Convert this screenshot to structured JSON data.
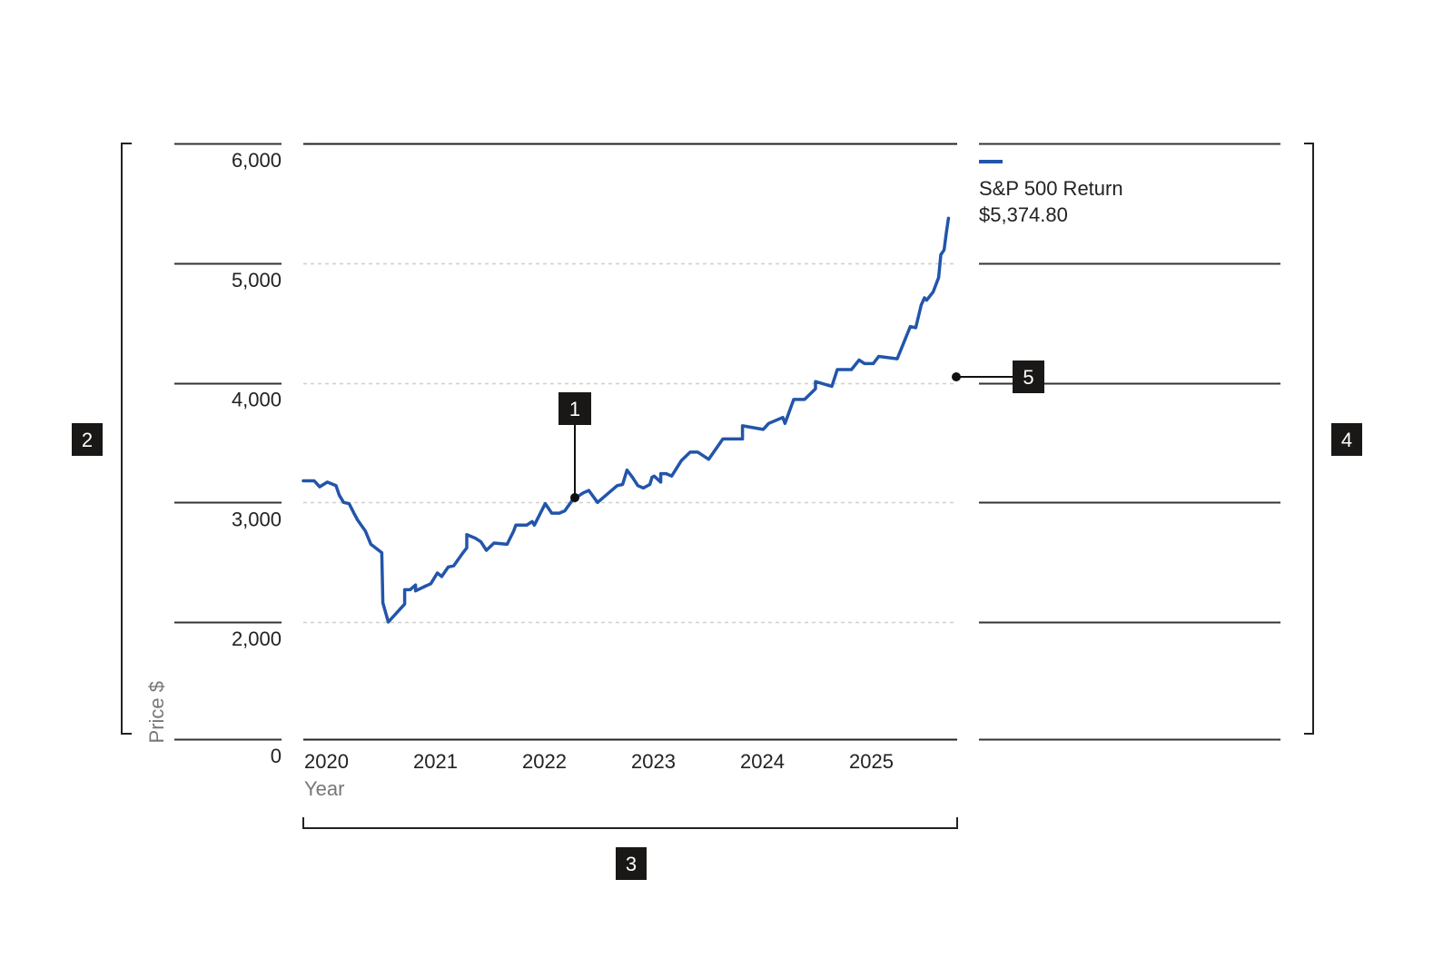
{
  "chart_data": {
    "type": "line",
    "title": "",
    "ylabel": "Price $",
    "xlabel": "Year",
    "ylim": [
      0,
      6000
    ],
    "y_ticks": [
      {
        "value": 0,
        "label": "0"
      },
      {
        "value": 2000,
        "label": "2,000"
      },
      {
        "value": 3000,
        "label": "3,000"
      },
      {
        "value": 4000,
        "label": "4,000"
      },
      {
        "value": 5000,
        "label": "5,000"
      },
      {
        "value": 6000,
        "label": "6,000"
      }
    ],
    "x_ticks": [
      {
        "value": 2020,
        "label": "2020"
      },
      {
        "value": 2021,
        "label": "2021"
      },
      {
        "value": 2022,
        "label": "2022"
      },
      {
        "value": 2023,
        "label": "2023"
      },
      {
        "value": 2024,
        "label": "2024"
      },
      {
        "value": 2025,
        "label": "2025"
      }
    ],
    "xlim": [
      2020,
      2026
    ],
    "grid": true,
    "legend_position": "top-right",
    "series": [
      {
        "name": "S&P 500 Return",
        "value_label": "$5,374.80",
        "color": "#2255aa",
        "points": [
          [
            2020.0,
            3180
          ],
          [
            2020.1,
            3180
          ],
          [
            2020.15,
            3130
          ],
          [
            2020.22,
            3170
          ],
          [
            2020.3,
            3140
          ],
          [
            2020.33,
            3060
          ],
          [
            2020.37,
            3000
          ],
          [
            2020.42,
            2990
          ],
          [
            2020.47,
            2900
          ],
          [
            2020.5,
            2850
          ],
          [
            2020.57,
            2760
          ],
          [
            2020.62,
            2650
          ],
          [
            2020.72,
            2580
          ],
          [
            2020.73,
            2160
          ],
          [
            2020.78,
            2000
          ],
          [
            2020.93,
            2150
          ],
          [
            2020.93,
            2270
          ],
          [
            2020.98,
            2270
          ],
          [
            2021.03,
            2310
          ],
          [
            2021.03,
            2260
          ],
          [
            2021.12,
            2300
          ],
          [
            2021.17,
            2320
          ],
          [
            2021.23,
            2410
          ],
          [
            2021.27,
            2380
          ],
          [
            2021.33,
            2460
          ],
          [
            2021.38,
            2470
          ],
          [
            2021.45,
            2560
          ],
          [
            2021.5,
            2620
          ],
          [
            2021.5,
            2730
          ],
          [
            2021.58,
            2700
          ],
          [
            2021.63,
            2670
          ],
          [
            2021.68,
            2600
          ],
          [
            2021.75,
            2660
          ],
          [
            2021.87,
            2650
          ],
          [
            2021.93,
            2760
          ],
          [
            2021.95,
            2810
          ],
          [
            2022.05,
            2810
          ],
          [
            2022.1,
            2840
          ],
          [
            2022.12,
            2810
          ],
          [
            2022.22,
            2990
          ],
          [
            2022.28,
            2910
          ],
          [
            2022.35,
            2910
          ],
          [
            2022.4,
            2930
          ],
          [
            2022.47,
            3020
          ],
          [
            2022.57,
            3080
          ],
          [
            2022.62,
            3100
          ],
          [
            2022.7,
            3000
          ],
          [
            2022.88,
            3140
          ],
          [
            2022.93,
            3150
          ],
          [
            2022.97,
            3270
          ],
          [
            2023.02,
            3210
          ],
          [
            2023.07,
            3140
          ],
          [
            2023.12,
            3120
          ],
          [
            2023.18,
            3150
          ],
          [
            2023.2,
            3210
          ],
          [
            2023.22,
            3220
          ],
          [
            2023.28,
            3170
          ],
          [
            2023.28,
            3240
          ],
          [
            2023.33,
            3240
          ],
          [
            2023.38,
            3220
          ],
          [
            2023.47,
            3350
          ],
          [
            2023.55,
            3420
          ],
          [
            2023.62,
            3420
          ],
          [
            2023.72,
            3360
          ],
          [
            2023.85,
            3530
          ],
          [
            2024.03,
            3530
          ],
          [
            2024.03,
            3640
          ],
          [
            2024.22,
            3610
          ],
          [
            2024.27,
            3660
          ],
          [
            2024.4,
            3710
          ],
          [
            2024.42,
            3660
          ],
          [
            2024.5,
            3860
          ],
          [
            2024.6,
            3860
          ],
          [
            2024.7,
            3950
          ],
          [
            2024.7,
            4010
          ],
          [
            2024.85,
            3970
          ],
          [
            2024.9,
            4110
          ],
          [
            2025.03,
            4110
          ],
          [
            2025.1,
            4190
          ],
          [
            2025.15,
            4160
          ],
          [
            2025.23,
            4160
          ],
          [
            2025.28,
            4220
          ],
          [
            2025.45,
            4200
          ],
          [
            2025.57,
            4470
          ],
          [
            2025.62,
            4460
          ],
          [
            2025.67,
            4650
          ],
          [
            2025.7,
            4710
          ],
          [
            2025.72,
            4690
          ],
          [
            2025.78,
            4760
          ],
          [
            2025.83,
            4880
          ],
          [
            2025.85,
            5070
          ],
          [
            2025.88,
            5110
          ],
          [
            2025.9,
            5250
          ],
          [
            2025.92,
            5374.8
          ]
        ]
      }
    ],
    "annotations": [
      {
        "label": "1",
        "target": "data-line"
      },
      {
        "label": "2",
        "target": "y-axis"
      },
      {
        "label": "3",
        "target": "x-axis"
      },
      {
        "label": "4",
        "target": "legend"
      },
      {
        "label": "5",
        "target": "plot-area"
      }
    ]
  }
}
